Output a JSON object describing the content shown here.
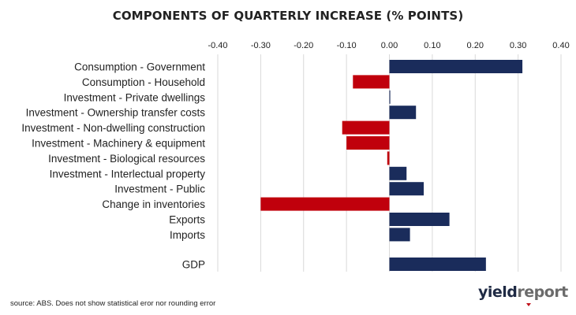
{
  "chart_data": {
    "type": "bar",
    "orientation": "horizontal",
    "title": "COMPONENTS OF QUARTERLY INCREASE (% POINTS)",
    "xlabel": "",
    "ylabel": "",
    "xlim": [
      -0.4,
      0.4
    ],
    "xticks": [
      "-0.40",
      "-0.30",
      "-0.20",
      "-0.10",
      "0.00",
      "0.10",
      "0.20",
      "0.30",
      "0.40"
    ],
    "grid": true,
    "categories": [
      "Consumption - Government",
      "Consumption - Household",
      "Investment - Private dwellings",
      "Investment - Ownership transfer costs",
      "Investment - Non-dwelling construction",
      "Investment - Machinery & equipment",
      "Investment - Biological resources",
      "Investment - Interlectual property",
      "Investment - Public",
      "Change in inventories",
      "Exports",
      "Imports",
      "GDP"
    ],
    "values": [
      0.31,
      -0.085,
      0.002,
      0.062,
      -0.11,
      -0.1,
      -0.005,
      0.04,
      0.08,
      -0.3,
      0.14,
      0.048,
      0.225
    ],
    "colors": {
      "positive": "#1a2c5b",
      "negative": "#c0000c"
    }
  },
  "footer": {
    "source": "source: ABS. Does not show statistical eror nor rounding error"
  },
  "logo": {
    "part1": "yield",
    "part2": "report"
  }
}
